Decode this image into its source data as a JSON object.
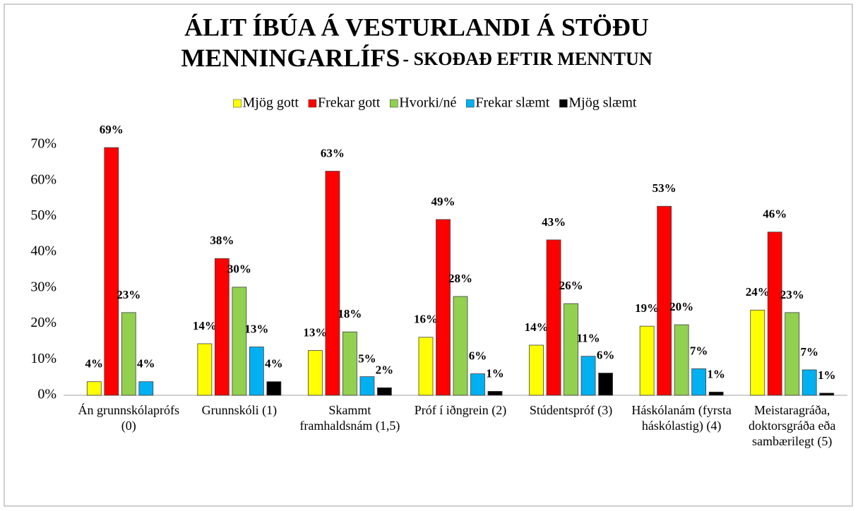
{
  "chart_data": {
    "type": "bar",
    "title": [
      "ÁLIT ÍBÚA Á VESTURLANDI Á STÖÐU",
      "MENNINGARLÍFS"
    ],
    "subtitle": "- SKOÐAÐ EFTIR MENNTUN",
    "categories": [
      "Án grunnskólaprófs (0)",
      "Grunnskóli (1)",
      "Skammt framhaldsnám (1,5)",
      "Próf í iðngrein (2)",
      "Stúdentspróf (3)",
      "Háskólanám (fyrsta háskólastig) (4)",
      "Meistaragráða, doktorsgráða eða sambærilegt (5)"
    ],
    "series": [
      {
        "name": "Mjög gott",
        "color": "#ffff00",
        "values": [
          3.8,
          14.4,
          12.5,
          16.2,
          14.0,
          19.3,
          23.8
        ],
        "value_labels": [
          "4%",
          "14%",
          "13%",
          "16%",
          "14%",
          "19%",
          "24%"
        ]
      },
      {
        "name": "Frekar gott",
        "color": "#ff0000",
        "values": [
          69.2,
          38.2,
          62.6,
          49.1,
          43.4,
          52.8,
          45.6
        ],
        "value_labels": [
          "69%",
          "38%",
          "63%",
          "49%",
          "43%",
          "53%",
          "46%"
        ]
      },
      {
        "name": "Hvorki/né",
        "color": "#92d050",
        "values": [
          23.1,
          30.2,
          17.7,
          27.6,
          25.6,
          19.7,
          23.1
        ],
        "value_labels": [
          "23%",
          "30%",
          "18%",
          "28%",
          "26%",
          "20%",
          "23%"
        ]
      },
      {
        "name": "Frekar slæmt",
        "color": "#00b0f0",
        "values": [
          3.8,
          13.5,
          5.2,
          6.0,
          10.9,
          7.4,
          7.1
        ],
        "value_labels": [
          "4%",
          "13%",
          "5%",
          "6%",
          "11%",
          "7%",
          "7%"
        ]
      },
      {
        "name": "Mjög slæmt",
        "color": "#000000",
        "values": [
          null,
          3.8,
          2.1,
          1.1,
          6.2,
          0.9,
          0.6
        ],
        "value_labels": [
          null,
          "4%",
          "2%",
          "1%",
          "6%",
          "1%",
          "1%"
        ]
      }
    ],
    "ylim": [
      0,
      70
    ],
    "yticks": [
      {
        "value": 0,
        "label": "0%"
      },
      {
        "value": 10,
        "label": "10%"
      },
      {
        "value": 20,
        "label": "20%"
      },
      {
        "value": 30,
        "label": "30%"
      },
      {
        "value": 40,
        "label": "40%"
      },
      {
        "value": 50,
        "label": "50%"
      },
      {
        "value": 60,
        "label": "60%"
      },
      {
        "value": 70,
        "label": "70%"
      }
    ],
    "grid": false,
    "legend": "top"
  }
}
